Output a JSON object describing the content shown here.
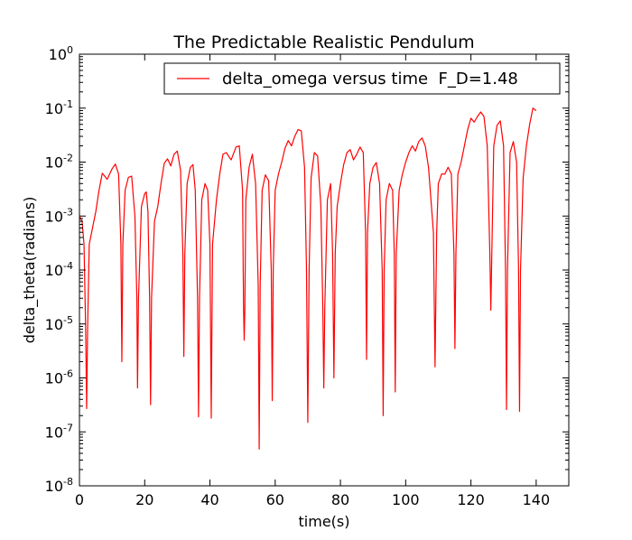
{
  "chart_data": {
    "type": "line",
    "title": "The Predictable Realistic Pendulum",
    "xlabel": "time(s)",
    "ylabel": "delta_theta(radians)",
    "xlim": [
      0,
      150
    ],
    "ylim": [
      1e-08,
      1
    ],
    "yscale": "log",
    "grid": false,
    "legend_position": "top-right",
    "x_ticks": [
      0,
      20,
      40,
      60,
      80,
      100,
      120,
      140
    ],
    "y_ticks": [
      {
        "value": 1e-08,
        "base": "10",
        "exp": "-8"
      },
      {
        "value": 1e-07,
        "base": "10",
        "exp": "-7"
      },
      {
        "value": 1e-06,
        "base": "10",
        "exp": "-6"
      },
      {
        "value": 1e-05,
        "base": "10",
        "exp": "-5"
      },
      {
        "value": 0.0001,
        "base": "10",
        "exp": "-4"
      },
      {
        "value": 0.001,
        "base": "10",
        "exp": "-3"
      },
      {
        "value": 0.01,
        "base": "10",
        "exp": "-2"
      },
      {
        "value": 0.1,
        "base": "10",
        "exp": "-1"
      },
      {
        "value": 1,
        "base": "10",
        "exp": "0"
      }
    ],
    "series": [
      {
        "name": "delta_omega versus time  F_D=1.48",
        "color": "#ff0000",
        "points": [
          [
            0,
            0.001
          ],
          [
            0.8,
            0.0008
          ],
          [
            1.4,
            0.0003
          ],
          [
            1.9,
            8e-06
          ],
          [
            2.2,
            2.7e-07
          ],
          [
            2.5,
            8e-06
          ],
          [
            3.0,
            0.0003
          ],
          [
            4,
            0.0006
          ],
          [
            5,
            0.0012
          ],
          [
            6,
            0.003
          ],
          [
            7,
            0.0062
          ],
          [
            8.5,
            0.0048
          ],
          [
            10,
            0.0075
          ],
          [
            11,
            0.0092
          ],
          [
            12,
            0.006
          ],
          [
            12.7,
            0.0003
          ],
          [
            13.0,
            2e-06
          ],
          [
            13.3,
            0.0003
          ],
          [
            14,
            0.003
          ],
          [
            15,
            0.0052
          ],
          [
            16,
            0.0055
          ],
          [
            17,
            0.001
          ],
          [
            17.6,
            3e-05
          ],
          [
            17.8,
            6.5e-07
          ],
          [
            18.1,
            3e-05
          ],
          [
            19,
            0.0015
          ],
          [
            20,
            0.0026
          ],
          [
            20.5,
            0.0028
          ],
          [
            21,
            0.0012
          ],
          [
            21.5,
            3e-05
          ],
          [
            21.8,
            3.2e-07
          ],
          [
            22.1,
            3e-05
          ],
          [
            23,
            0.0008
          ],
          [
            24,
            0.0015
          ],
          [
            25,
            0.004
          ],
          [
            26,
            0.0095
          ],
          [
            27,
            0.0115
          ],
          [
            28,
            0.0085
          ],
          [
            29,
            0.014
          ],
          [
            30,
            0.016
          ],
          [
            31,
            0.007
          ],
          [
            31.7,
            0.0002
          ],
          [
            32.0,
            2.5e-06
          ],
          [
            32.3,
            0.0002
          ],
          [
            33,
            0.004
          ],
          [
            34,
            0.008
          ],
          [
            34.8,
            0.009
          ],
          [
            35.5,
            0.003
          ],
          [
            36.2,
            3e-05
          ],
          [
            36.5,
            1.9e-07
          ],
          [
            36.8,
            3e-05
          ],
          [
            37.5,
            0.002
          ],
          [
            38.5,
            0.004
          ],
          [
            39.3,
            0.003
          ],
          [
            40,
            0.0003
          ],
          [
            40.4,
            1.8e-07
          ],
          [
            40.8,
            0.0003
          ],
          [
            42,
            0.002
          ],
          [
            43,
            0.006
          ],
          [
            44,
            0.014
          ],
          [
            45,
            0.015
          ],
          [
            46.5,
            0.011
          ],
          [
            48,
            0.019
          ],
          [
            49,
            0.02
          ],
          [
            50,
            0.003
          ],
          [
            50.3,
            2e-05
          ],
          [
            50.5,
            5e-06
          ],
          [
            50.7,
            2e-05
          ],
          [
            51,
            0.002
          ],
          [
            52,
            0.008
          ],
          [
            53,
            0.014
          ],
          [
            54,
            0.004
          ],
          [
            54.8,
            5e-05
          ],
          [
            55.1,
            4.8e-08
          ],
          [
            55.4,
            5e-05
          ],
          [
            56,
            0.003
          ],
          [
            57,
            0.0058
          ],
          [
            58,
            0.0045
          ],
          [
            58.8,
            0.0001
          ],
          [
            59.1,
            3.8e-07
          ],
          [
            59.4,
            0.0001
          ],
          [
            60,
            0.003
          ],
          [
            61,
            0.006
          ],
          [
            62,
            0.01
          ],
          [
            63,
            0.018
          ],
          [
            64,
            0.025
          ],
          [
            65,
            0.02
          ],
          [
            66,
            0.03
          ],
          [
            67,
            0.04
          ],
          [
            68,
            0.038
          ],
          [
            69,
            0.008
          ],
          [
            69.6,
            0.0001
          ],
          [
            70.0,
            1.5e-07
          ],
          [
            70.4,
            0.0001
          ],
          [
            71,
            0.005
          ],
          [
            72,
            0.015
          ],
          [
            73,
            0.013
          ],
          [
            74,
            0.0015
          ],
          [
            74.6,
            2e-05
          ],
          [
            74.9,
            6.5e-07
          ],
          [
            75.2,
            2e-05
          ],
          [
            76,
            0.002
          ],
          [
            77,
            0.004
          ],
          [
            77.6,
            0.0002
          ],
          [
            78.0,
            1e-06
          ],
          [
            78.4,
            0.0002
          ],
          [
            79,
            0.0015
          ],
          [
            80,
            0.004
          ],
          [
            81,
            0.009
          ],
          [
            82,
            0.015
          ],
          [
            83,
            0.017
          ],
          [
            84,
            0.011
          ],
          [
            85,
            0.014
          ],
          [
            86,
            0.019
          ],
          [
            87,
            0.015
          ],
          [
            87.7,
            0.0005
          ],
          [
            88.0,
            2.2e-06
          ],
          [
            88.3,
            0.0005
          ],
          [
            89,
            0.004
          ],
          [
            90,
            0.008
          ],
          [
            91,
            0.0098
          ],
          [
            92,
            0.004
          ],
          [
            92.8,
            0.0001
          ],
          [
            93.1,
            2e-07
          ],
          [
            93.4,
            0.0001
          ],
          [
            94,
            0.002
          ],
          [
            95,
            0.004
          ],
          [
            96,
            0.003
          ],
          [
            96.5,
            0.0002
          ],
          [
            96.8,
            5.5e-07
          ],
          [
            97.1,
            0.0002
          ],
          [
            98,
            0.003
          ],
          [
            99,
            0.006
          ],
          [
            100,
            0.01
          ],
          [
            101,
            0.015
          ],
          [
            102,
            0.02
          ],
          [
            103,
            0.016
          ],
          [
            104,
            0.024
          ],
          [
            105,
            0.028
          ],
          [
            106,
            0.02
          ],
          [
            107,
            0.008
          ],
          [
            108.5,
            0.0005
          ],
          [
            109.0,
            1.6e-06
          ],
          [
            109.5,
            0.0005
          ],
          [
            110,
            0.004
          ],
          [
            111,
            0.006
          ],
          [
            112,
            0.006
          ],
          [
            113,
            0.008
          ],
          [
            114,
            0.006
          ],
          [
            114.8,
            0.0002
          ],
          [
            115.1,
            3.5e-06
          ],
          [
            115.4,
            0.0002
          ],
          [
            116,
            0.006
          ],
          [
            117,
            0.01
          ],
          [
            118,
            0.02
          ],
          [
            119,
            0.04
          ],
          [
            120,
            0.065
          ],
          [
            121,
            0.055
          ],
          [
            122,
            0.07
          ],
          [
            123,
            0.085
          ],
          [
            124,
            0.07
          ],
          [
            125,
            0.02
          ],
          [
            125.8,
            0.0002
          ],
          [
            126.1,
            1.8e-05
          ],
          [
            126.4,
            0.0002
          ],
          [
            127,
            0.02
          ],
          [
            128,
            0.048
          ],
          [
            129,
            0.058
          ],
          [
            130,
            0.02
          ],
          [
            130.6,
            0.0001
          ],
          [
            130.9,
            2.6e-07
          ],
          [
            131.2,
            0.0001
          ],
          [
            132,
            0.015
          ],
          [
            133,
            0.024
          ],
          [
            134,
            0.01
          ],
          [
            134.6,
            0.0001
          ],
          [
            134.9,
            2.4e-07
          ],
          [
            135.2,
            0.0001
          ],
          [
            136,
            0.005
          ],
          [
            137,
            0.02
          ],
          [
            138,
            0.05
          ],
          [
            139,
            0.1
          ],
          [
            140,
            0.09
          ]
        ]
      }
    ]
  }
}
